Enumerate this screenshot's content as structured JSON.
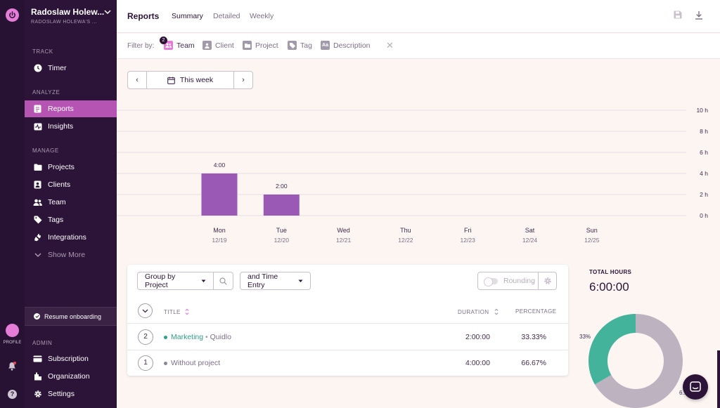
{
  "rail": {
    "profile_label": "PROFILE"
  },
  "workspace": {
    "name": "Radoslaw Holew...",
    "sub": "RADOSLAW HOLEWA'S ..."
  },
  "sidebar": {
    "sections": {
      "track": "TRACK",
      "analyze": "ANALYZE",
      "manage": "MANAGE",
      "admin": "ADMIN"
    },
    "items": [
      {
        "label": "Timer",
        "icon": "clock-icon"
      },
      {
        "label": "Reports",
        "icon": "reports-icon"
      },
      {
        "label": "Insights",
        "icon": "insights-icon"
      },
      {
        "label": "Projects",
        "icon": "folder-icon"
      },
      {
        "label": "Clients",
        "icon": "client-icon"
      },
      {
        "label": "Team",
        "icon": "team-icon"
      },
      {
        "label": "Tags",
        "icon": "tag-icon"
      },
      {
        "label": "Integrations",
        "icon": "plug-icon"
      },
      {
        "label": "Show More",
        "icon": "chevron-down-icon"
      },
      {
        "label": "Subscription",
        "icon": "card-icon"
      },
      {
        "label": "Organization",
        "icon": "building-icon"
      },
      {
        "label": "Settings",
        "icon": "gear-icon"
      }
    ],
    "onboarding": "Resume onboarding"
  },
  "header": {
    "title": "Reports",
    "tabs": [
      "Summary",
      "Detailed",
      "Weekly"
    ],
    "active_tab": "Summary"
  },
  "filters": {
    "label": "Filter by:",
    "items": [
      {
        "label": "Team",
        "badge": "2",
        "icon": "team-filter-icon"
      },
      {
        "label": "Client",
        "icon": "client-filter-icon"
      },
      {
        "label": "Project",
        "icon": "project-filter-icon"
      },
      {
        "label": "Tag",
        "icon": "tag-filter-icon"
      },
      {
        "label": "Description",
        "icon": "description-filter-icon"
      }
    ],
    "clear": "✕"
  },
  "date_range": {
    "label": "This week"
  },
  "chart_data": {
    "type": "bar",
    "categories": [
      "Mon",
      "Tue",
      "Wed",
      "Thu",
      "Fri",
      "Sat",
      "Sun"
    ],
    "dates": [
      "12/19",
      "12/20",
      "12/21",
      "12/22",
      "12/23",
      "12/24",
      "12/25"
    ],
    "values": [
      4,
      2,
      0,
      0,
      0,
      0,
      0
    ],
    "value_labels": [
      "4:00",
      "2:00",
      "",
      "",
      "",
      "",
      ""
    ],
    "y_ticks": [
      "0 h",
      "2 h",
      "4 h",
      "6 h",
      "8 h",
      "10 h"
    ],
    "ylim": [
      0,
      10
    ],
    "color": "#9b59b6"
  },
  "table": {
    "group_by": "Group by Project",
    "sub_group": "and Time Entry",
    "rounding": "Rounding",
    "columns": {
      "title": "TITLE",
      "duration": "DURATION",
      "percentage": "PERCENTAGE"
    },
    "rows": [
      {
        "count": "2",
        "name": "Marketing",
        "client": "Quidlo",
        "duration": "2:00:00",
        "percentage": "33.33%",
        "color": "#2da08a"
      },
      {
        "count": "1",
        "name": "Without project",
        "client": "",
        "duration": "4:00:00",
        "percentage": "66.67%",
        "color": "#a29aa8"
      }
    ]
  },
  "totals": {
    "label": "TOTAL HOURS",
    "value": "6:00:00"
  },
  "donut": {
    "slices": [
      {
        "label": "33%",
        "value": 33.33,
        "color": "#44b39c"
      },
      {
        "label": "6...",
        "value": 66.67,
        "color": "#bcb2c0"
      }
    ]
  }
}
